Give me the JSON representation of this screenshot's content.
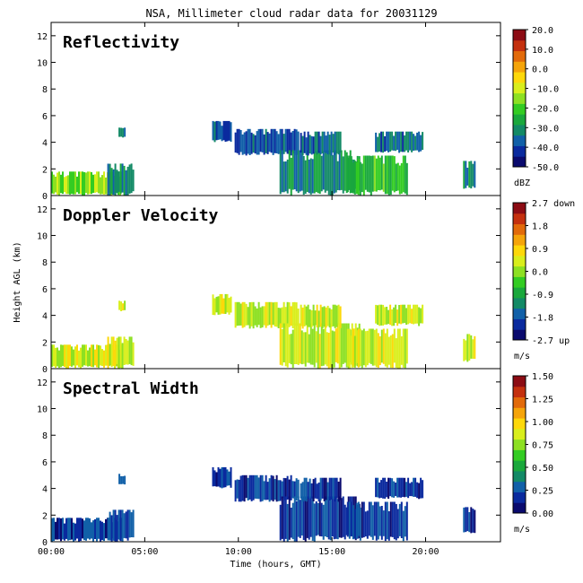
{
  "title": "NSA, Millimeter cloud radar data for 20031129",
  "colors": {
    "colorbar": [
      "#0a0a6e",
      "#0a2a9e",
      "#1160a8",
      "#138a66",
      "#1aa83c",
      "#33cc22",
      "#8de022",
      "#d9ee1c",
      "#fdd80a",
      "#f5a40a",
      "#e26a0a",
      "#c4300e",
      "#8c0c14"
    ]
  },
  "chart_data": [
    {
      "type": "heatmap",
      "panel_title": "Reflectivity",
      "xlabel": "",
      "ylabel": "",
      "xlim": [
        0,
        24
      ],
      "ylim": [
        0,
        13
      ],
      "x_ticks": [
        0,
        5,
        10,
        15,
        20
      ],
      "x_tick_labels": [],
      "y_ticks": [
        0,
        2,
        4,
        6,
        8,
        10,
        12
      ],
      "y_tick_labels": [
        "0",
        "2",
        "4",
        "6",
        "8",
        "10",
        "12"
      ],
      "colorbar": {
        "labels": [
          "20.0",
          "10.0",
          "0.0",
          "-10.0",
          "-20.0",
          "-30.0",
          "-40.0",
          "-50.0"
        ],
        "unit": "dBZ",
        "range": [
          -50,
          20
        ]
      },
      "cloud_regions": [
        {
          "t_start": 0.0,
          "t_end": 3.8,
          "h_base": 0.0,
          "h_top": 1.8,
          "value": -15
        },
        {
          "t_start": 3.0,
          "t_end": 4.4,
          "h_base": 0.0,
          "h_top": 2.4,
          "value": -32
        },
        {
          "t_start": 3.6,
          "t_end": 3.9,
          "h_base": 4.3,
          "h_top": 5.1,
          "value": -35
        },
        {
          "t_start": 8.6,
          "t_end": 9.6,
          "h_base": 4.0,
          "h_top": 5.6,
          "value": -38
        },
        {
          "t_start": 9.8,
          "t_end": 13.2,
          "h_base": 3.0,
          "h_top": 5.0,
          "value": -38
        },
        {
          "t_start": 12.2,
          "t_end": 16.5,
          "h_base": 0.0,
          "h_top": 3.4,
          "value": -30
        },
        {
          "t_start": 13.3,
          "t_end": 15.5,
          "h_base": 3.0,
          "h_top": 4.8,
          "value": -35
        },
        {
          "t_start": 15.8,
          "t_end": 19.0,
          "h_base": 0.0,
          "h_top": 3.0,
          "value": -22
        },
        {
          "t_start": 17.3,
          "t_end": 19.8,
          "h_base": 3.2,
          "h_top": 4.8,
          "value": -35
        },
        {
          "t_start": 22.0,
          "t_end": 22.6,
          "h_base": 0.5,
          "h_top": 2.6,
          "value": -30
        }
      ]
    },
    {
      "type": "heatmap",
      "panel_title": "Doppler Velocity",
      "xlabel": "",
      "ylabel": "Height AGL (km)",
      "xlim": [
        0,
        24
      ],
      "ylim": [
        0,
        13
      ],
      "x_ticks": [
        0,
        5,
        10,
        15,
        20
      ],
      "x_tick_labels": [],
      "y_ticks": [
        0,
        2,
        4,
        6,
        8,
        10,
        12
      ],
      "y_tick_labels": [
        "0",
        "2",
        "4",
        "6",
        "8",
        "10",
        "12"
      ],
      "colorbar": {
        "labels": [
          "2.7 down",
          "1.8",
          "0.9",
          "0.0",
          "-0.9",
          "-1.8",
          "-2.7 up"
        ],
        "unit": "m/s",
        "range": [
          -2.7,
          2.7
        ]
      },
      "cloud_regions": [
        {
          "t_start": 0.0,
          "t_end": 3.8,
          "h_base": 0.0,
          "h_top": 1.8,
          "value": 0.4
        },
        {
          "t_start": 3.0,
          "t_end": 4.4,
          "h_base": 0.0,
          "h_top": 2.4,
          "value": 0.3
        },
        {
          "t_start": 3.6,
          "t_end": 3.9,
          "h_base": 4.3,
          "h_top": 5.1,
          "value": 0.4
        },
        {
          "t_start": 8.6,
          "t_end": 9.6,
          "h_base": 4.0,
          "h_top": 5.6,
          "value": 0.3
        },
        {
          "t_start": 9.8,
          "t_end": 13.2,
          "h_base": 3.0,
          "h_top": 5.0,
          "value": 0.3
        },
        {
          "t_start": 12.2,
          "t_end": 16.5,
          "h_base": 0.0,
          "h_top": 3.4,
          "value": 0.3
        },
        {
          "t_start": 13.3,
          "t_end": 15.5,
          "h_base": 3.0,
          "h_top": 4.8,
          "value": 0.3
        },
        {
          "t_start": 15.8,
          "t_end": 19.0,
          "h_base": 0.0,
          "h_top": 3.0,
          "value": 0.4
        },
        {
          "t_start": 17.3,
          "t_end": 19.8,
          "h_base": 3.2,
          "h_top": 4.8,
          "value": 0.3
        },
        {
          "t_start": 22.0,
          "t_end": 22.6,
          "h_base": 0.5,
          "h_top": 2.6,
          "value": 0.3
        }
      ]
    },
    {
      "type": "heatmap",
      "panel_title": "Spectral Width",
      "xlabel": "Time (hours, GMT)",
      "ylabel": "",
      "xlim": [
        0,
        24
      ],
      "ylim": [
        0,
        13
      ],
      "x_ticks": [
        0,
        5,
        10,
        15,
        20
      ],
      "x_tick_labels": [
        "00:00",
        "05:00",
        "10:00",
        "15:00",
        "20:00"
      ],
      "y_ticks": [
        0,
        2,
        4,
        6,
        8,
        10,
        12
      ],
      "y_tick_labels": [
        "0",
        "2",
        "4",
        "6",
        "8",
        "10",
        "12"
      ],
      "colorbar": {
        "labels": [
          "1.50",
          "1.25",
          "1.00",
          "0.75",
          "0.50",
          "0.25",
          "0.00"
        ],
        "unit": "m/s",
        "range": [
          0,
          1.5
        ]
      },
      "cloud_regions": [
        {
          "t_start": 0.0,
          "t_end": 3.8,
          "h_base": 0.0,
          "h_top": 1.8,
          "value": 0.2
        },
        {
          "t_start": 3.0,
          "t_end": 4.4,
          "h_base": 0.0,
          "h_top": 2.4,
          "value": 0.22
        },
        {
          "t_start": 3.6,
          "t_end": 3.9,
          "h_base": 4.3,
          "h_top": 5.1,
          "value": 0.25
        },
        {
          "t_start": 8.6,
          "t_end": 9.6,
          "h_base": 4.0,
          "h_top": 5.6,
          "value": 0.2
        },
        {
          "t_start": 9.8,
          "t_end": 13.2,
          "h_base": 3.0,
          "h_top": 5.0,
          "value": 0.2
        },
        {
          "t_start": 12.2,
          "t_end": 16.5,
          "h_base": 0.0,
          "h_top": 3.4,
          "value": 0.2
        },
        {
          "t_start": 13.3,
          "t_end": 15.5,
          "h_base": 3.0,
          "h_top": 4.8,
          "value": 0.2
        },
        {
          "t_start": 15.8,
          "t_end": 19.0,
          "h_base": 0.0,
          "h_top": 3.0,
          "value": 0.2
        },
        {
          "t_start": 17.3,
          "t_end": 19.8,
          "h_base": 3.2,
          "h_top": 4.8,
          "value": 0.2
        },
        {
          "t_start": 22.0,
          "t_end": 22.6,
          "h_base": 0.5,
          "h_top": 2.6,
          "value": 0.22
        }
      ]
    }
  ]
}
